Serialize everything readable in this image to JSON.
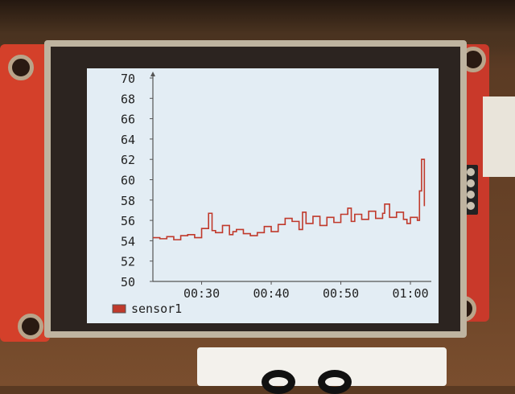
{
  "chart_data": {
    "type": "line",
    "ylim": [
      50,
      70
    ],
    "yticks": [
      "50",
      "52",
      "54",
      "56",
      "58",
      "60",
      "62",
      "64",
      "66",
      "68",
      "70"
    ],
    "xticks": [
      "00:30",
      "00:40",
      "00:50",
      "01:00"
    ],
    "xtick_values": [
      30,
      40,
      50,
      60
    ],
    "xlim": [
      23,
      63
    ],
    "series": [
      {
        "name": "sensor1",
        "color": "#c0392b",
        "x": [
          23,
          24,
          25,
          26,
          27,
          28,
          29,
          30,
          31,
          31.5,
          32,
          33,
          34,
          34.5,
          35,
          36,
          37,
          38,
          39,
          40,
          41,
          42,
          43,
          44,
          44.5,
          45,
          46,
          47,
          48,
          49,
          50,
          51,
          51.5,
          52,
          53,
          54,
          55,
          56,
          56.3,
          57,
          58,
          59,
          59.5,
          60,
          61,
          61.3,
          61.6,
          62
        ],
        "values": [
          54.3,
          54.2,
          54.4,
          54.1,
          54.5,
          54.6,
          54.3,
          55.2,
          56.7,
          55.0,
          54.8,
          55.5,
          54.6,
          54.9,
          55.1,
          54.7,
          54.5,
          54.8,
          55.4,
          54.9,
          55.6,
          56.2,
          55.9,
          55.1,
          56.8,
          55.7,
          56.4,
          55.5,
          56.3,
          55.8,
          56.6,
          57.2,
          55.9,
          56.6,
          56.1,
          56.9,
          56.2,
          56.7,
          57.6,
          56.3,
          56.8,
          56.1,
          55.7,
          56.3,
          56.0,
          58.9,
          62.0,
          57.4
        ]
      }
    ],
    "legend": [
      {
        "label": "sensor1",
        "color": "#c0392b"
      }
    ],
    "grid": false
  }
}
